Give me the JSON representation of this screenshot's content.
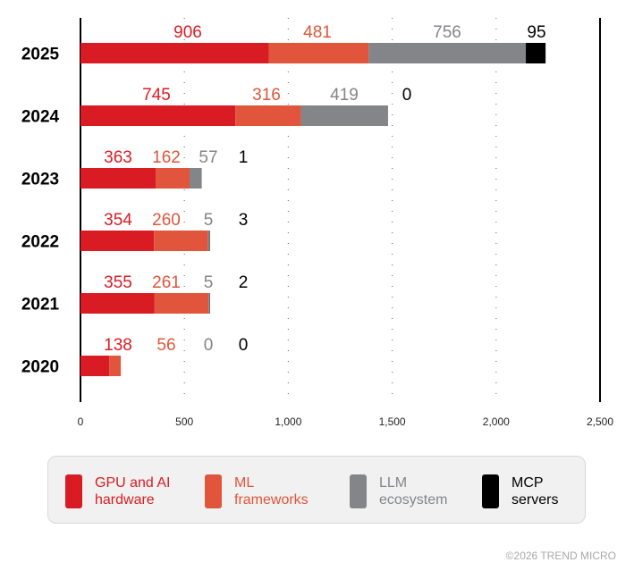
{
  "chart_data": {
    "type": "bar",
    "orientation": "horizontal",
    "stacked": true,
    "categories": [
      "2025",
      "2024",
      "2023",
      "2022",
      "2021",
      "2020"
    ],
    "series": [
      {
        "name": "GPU and AI hardware",
        "color": "#d91c24",
        "values": [
          906,
          745,
          363,
          354,
          355,
          138
        ]
      },
      {
        "name": "ML frameworks",
        "color": "#e0553b",
        "values": [
          481,
          316,
          162,
          260,
          261,
          56
        ]
      },
      {
        "name": "LLM ecosystem",
        "color": "#848589",
        "values": [
          756,
          419,
          57,
          5,
          5,
          0
        ]
      },
      {
        "name": "MCP servers",
        "color": "#000000",
        "values": [
          95,
          0,
          1,
          3,
          2,
          0
        ]
      }
    ],
    "xlim": [
      0,
      2500
    ],
    "xticks": [
      0,
      500,
      1000,
      1500,
      2000,
      2500
    ],
    "xtick_labels": [
      "0",
      "500",
      "1,000",
      "1,500",
      "2,000",
      "2,500"
    ],
    "grid": "vertical dotted",
    "legend": "bottom"
  },
  "legend": [
    {
      "line1": "GPU and AI",
      "line2": "hardware",
      "color": "#d91c24"
    },
    {
      "line1": "ML",
      "line2": "frameworks",
      "color": "#e0553b"
    },
    {
      "line1": "LLM",
      "line2": "ecosystem",
      "color": "#848589"
    },
    {
      "line1": "MCP",
      "line2": "servers",
      "color": "#000000"
    }
  ],
  "copyright": "©2026 TREND MICRO"
}
